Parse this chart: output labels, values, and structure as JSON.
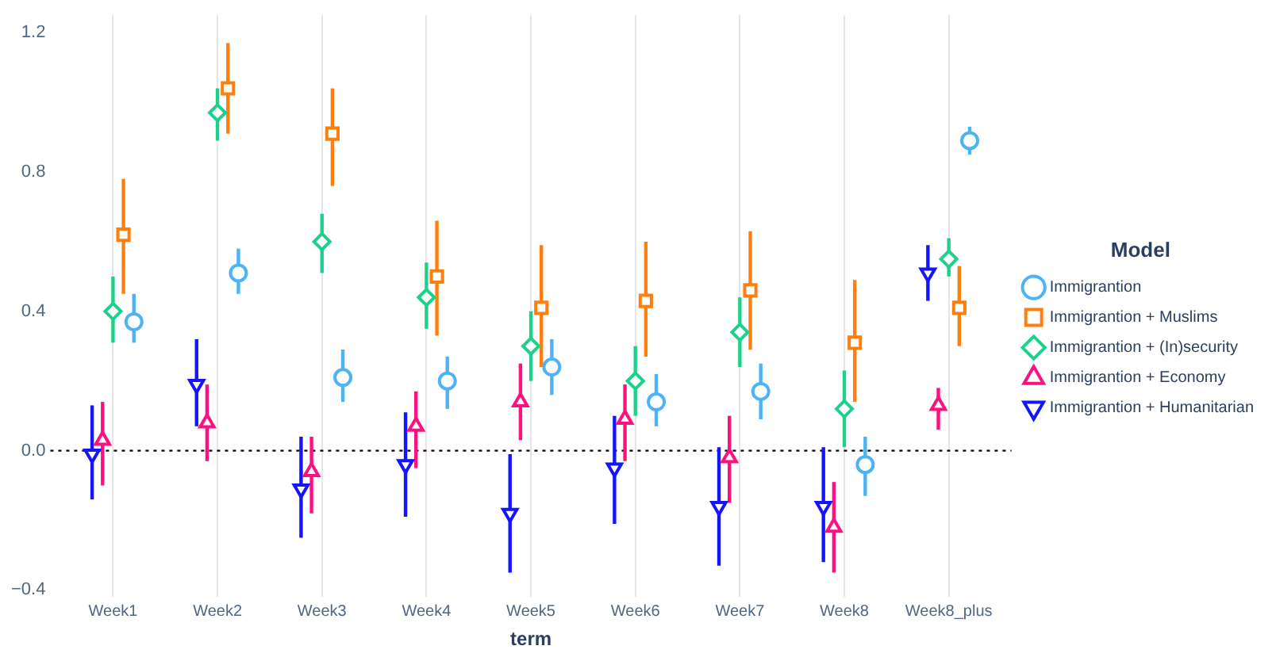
{
  "chart_data": {
    "type": "scatter",
    "xlabel": "term",
    "legend_title": "Model",
    "legend": "right",
    "grid": "x",
    "categories": [
      "Week1",
      "Week2",
      "Week3",
      "Week4",
      "Week5",
      "Week6",
      "Week7",
      "Week8",
      "Week8_plus"
    ],
    "ylim": [
      -0.42,
      1.25
    ],
    "yticks": [
      {
        "value": -0.4,
        "label": "−0.4"
      },
      {
        "value": 0,
        "label": "0.0"
      },
      {
        "value": 0.4,
        "label": "0.4"
      },
      {
        "value": 0.8,
        "label": "0.8"
      },
      {
        "value": 1.2,
        "label": "1.2"
      }
    ],
    "ref_lines": [
      {
        "axis": "y",
        "value": 0,
        "label": null,
        "color": "#000000",
        "line_style": "dotted"
      }
    ],
    "series": [
      {
        "name": "Immigrantion",
        "color": "#4db3f5",
        "marker": "circle",
        "values": [
          0.37,
          0.51,
          0.21,
          0.2,
          0.24,
          0.14,
          0.17,
          -0.04,
          0.89
        ],
        "errors": [
          [
            0.31,
            0.45
          ],
          [
            0.45,
            0.58
          ],
          [
            0.14,
            0.29
          ],
          [
            0.12,
            0.27
          ],
          [
            0.16,
            0.32
          ],
          [
            0.07,
            0.22
          ],
          [
            0.09,
            0.25
          ],
          [
            -0.13,
            0.04
          ],
          [
            0.85,
            0.93
          ]
        ]
      },
      {
        "name": "Immigrantion + Muslims",
        "color": "#ff7f0e",
        "marker": "square",
        "values": [
          0.62,
          1.04,
          0.91,
          0.5,
          0.41,
          0.43,
          0.46,
          0.31,
          0.41
        ],
        "errors": [
          [
            0.45,
            0.78
          ],
          [
            0.91,
            1.17
          ],
          [
            0.76,
            1.04
          ],
          [
            0.33,
            0.66
          ],
          [
            0.24,
            0.59
          ],
          [
            0.27,
            0.6
          ],
          [
            0.29,
            0.63
          ],
          [
            0.14,
            0.49
          ],
          [
            0.3,
            0.53
          ]
        ]
      },
      {
        "name": "Immigrantion + (In)security",
        "color": "#1dd18a",
        "marker": "diamond",
        "values": [
          0.4,
          0.97,
          0.6,
          0.44,
          0.3,
          0.2,
          0.34,
          0.12,
          0.55
        ],
        "errors": [
          [
            0.31,
            0.5
          ],
          [
            0.89,
            1.04
          ],
          [
            0.51,
            0.68
          ],
          [
            0.35,
            0.54
          ],
          [
            0.2,
            0.4
          ],
          [
            0.1,
            0.3
          ],
          [
            0.24,
            0.44
          ],
          [
            0.01,
            0.23
          ],
          [
            0.5,
            0.61
          ]
        ]
      },
      {
        "name": "Immigrantion + Economy",
        "color": "#ff1080",
        "marker": "triangle",
        "values": [
          0.03,
          0.08,
          -0.06,
          0.07,
          0.14,
          0.09,
          -0.02,
          -0.22,
          0.13
        ],
        "errors": [
          [
            -0.1,
            0.14
          ],
          [
            -0.03,
            0.19
          ],
          [
            -0.18,
            0.04
          ],
          [
            -0.05,
            0.17
          ],
          [
            0.03,
            0.25
          ],
          [
            -0.03,
            0.19
          ],
          [
            -0.15,
            0.1
          ],
          [
            -0.35,
            -0.09
          ],
          [
            0.06,
            0.18
          ]
        ]
      },
      {
        "name": "Immigrantion + Humanitarian",
        "color": "#1414ff",
        "marker": "triangle-down",
        "values": [
          -0.01,
          0.19,
          -0.11,
          -0.04,
          -0.18,
          -0.05,
          -0.16,
          -0.16,
          0.51
        ],
        "errors": [
          [
            -0.14,
            0.13
          ],
          [
            0.07,
            0.32
          ],
          [
            -0.25,
            0.04
          ],
          [
            -0.19,
            0.11
          ],
          [
            -0.35,
            -0.01
          ],
          [
            -0.21,
            0.1
          ],
          [
            -0.33,
            0.01
          ],
          [
            -0.32,
            0.01
          ],
          [
            0.43,
            0.59
          ]
        ]
      }
    ]
  }
}
